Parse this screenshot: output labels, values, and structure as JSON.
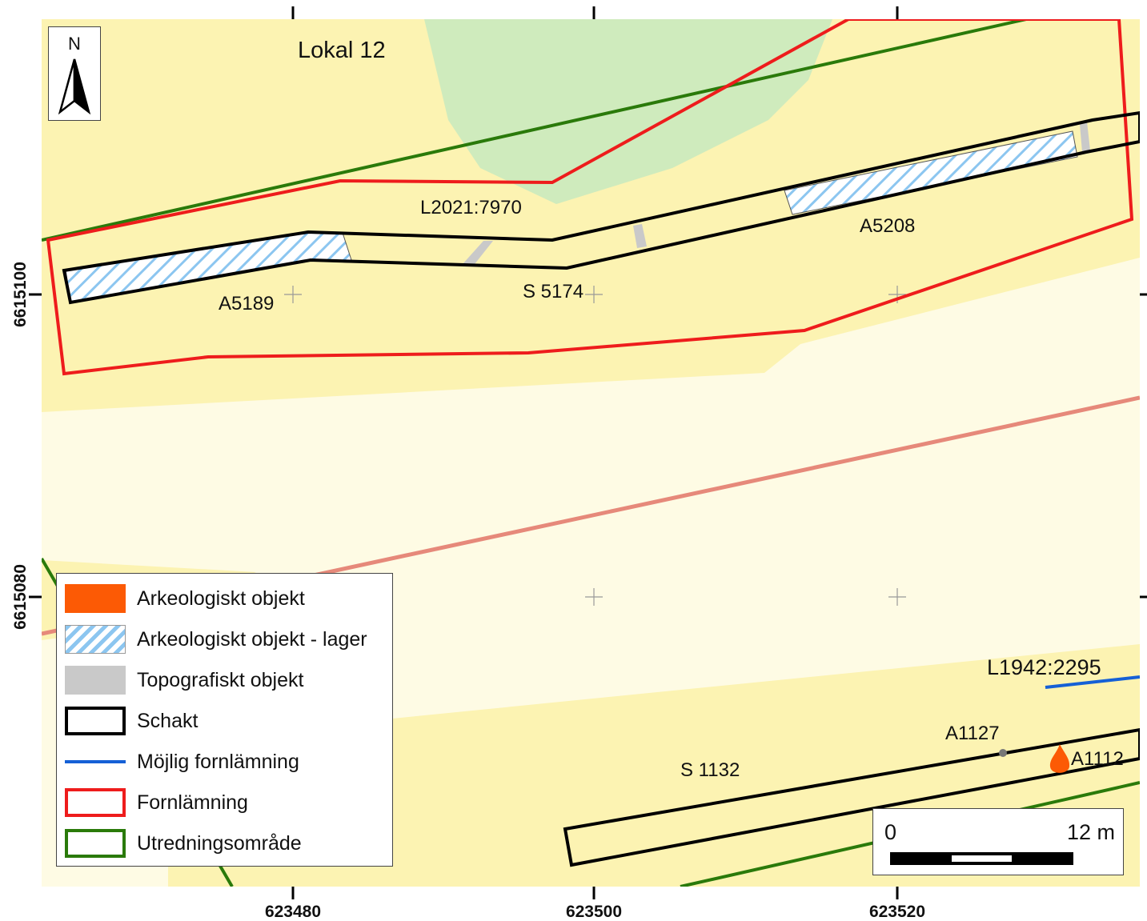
{
  "map": {
    "site_title": "Lokal 12",
    "x_ticks": [
      "623480",
      "623500",
      "623520"
    ],
    "y_ticks": [
      "6615100",
      "6615080"
    ],
    "feature_labels": {
      "l2021": "L2021:7970",
      "a5189": "A5189",
      "s5174": "S 5174",
      "a5208": "A5208",
      "l1942": "L1942:2295",
      "a1127": "A1127",
      "a1112": "A1112",
      "s1132": "S 1132"
    },
    "colors": {
      "background_light": "#fefbe4",
      "terrain_yellow": "#fcf3b2",
      "terrain_green": "#cfebbd",
      "road_line": "#e6897a",
      "fornlamning": "#ee1c1c",
      "utredningsomrade": "#2a7a0a",
      "schakt": "#000000",
      "mojlig_fornlamning": "#1560d6",
      "arkeologiskt_objekt": "#fc5a05",
      "lager_hatch": "#8cc6f0",
      "topografiskt_objekt": "#c9c9c9"
    }
  },
  "north_arrow": {
    "label": "N"
  },
  "legend": {
    "items": [
      {
        "label": "Arkeologiskt objekt",
        "symbol": "orange-fill"
      },
      {
        "label": "Arkeologiskt objekt - lager",
        "symbol": "blue-hatch"
      },
      {
        "label": "Topografiskt objekt",
        "symbol": "grey-fill"
      },
      {
        "label": "Schakt",
        "symbol": "black-outline"
      },
      {
        "label": "Möjlig fornlämning",
        "symbol": "blue-line"
      },
      {
        "label": "Fornlämning",
        "symbol": "red-outline"
      },
      {
        "label": "Utredningsområde",
        "symbol": "green-outline"
      }
    ]
  },
  "scale_bar": {
    "start_label": "0",
    "end_label": "12 m"
  }
}
